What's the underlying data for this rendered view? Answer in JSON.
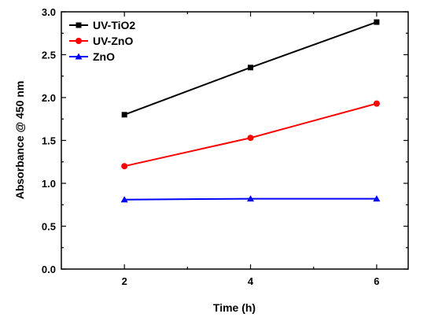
{
  "chart_data": {
    "type": "line",
    "xlabel": "Time (h)",
    "ylabel": "Absorbance @ 450 nm",
    "x": [
      2,
      4,
      6
    ],
    "xlim": [
      1,
      6.5
    ],
    "ylim": [
      0,
      3.0
    ],
    "xticks": [
      2,
      4,
      6
    ],
    "xtick_labels": [
      "2",
      "4",
      "6"
    ],
    "yticks": [
      0,
      0.5,
      1.0,
      1.5,
      2.0,
      2.5,
      3.0
    ],
    "ytick_labels": [
      "0.0",
      "0.5",
      "1.0",
      "1.5",
      "2.0",
      "2.5",
      "3.0"
    ],
    "grid": false,
    "legend_position": "top-left",
    "series": [
      {
        "name": "UV-TiO2",
        "values": [
          1.8,
          2.35,
          2.88
        ],
        "color": "#000000",
        "marker": "square"
      },
      {
        "name": "UV-ZnO",
        "values": [
          1.2,
          1.53,
          1.93
        ],
        "color": "#ff0000",
        "marker": "circle"
      },
      {
        "name": "ZnO",
        "values": [
          0.81,
          0.82,
          0.82
        ],
        "color": "#0000ff",
        "marker": "triangle"
      }
    ]
  }
}
